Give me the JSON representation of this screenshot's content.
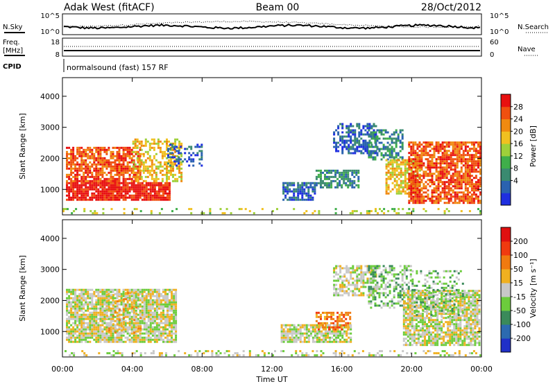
{
  "header": {
    "station": "Adak West (fitACF)",
    "beam": "Beam 00",
    "date": "28/Oct/2012"
  },
  "summary": {
    "nsky_label": "N.Sky",
    "nsearch_label": "N.Search",
    "top_ticks": [
      "10^5",
      "10^0"
    ],
    "freq_label_1": "Freq.",
    "freq_label_2": "[MHz]",
    "freq_ticks": [
      "18",
      "8"
    ],
    "nave_label": "Nave",
    "nave_ticks": [
      "60",
      "0"
    ],
    "cpid_label": "CPID",
    "cpid_text": "normalsound (fast) 157 RF"
  },
  "x_axis": {
    "label": "Time UT",
    "ticks": [
      "00:00",
      "04:00",
      "08:00",
      "12:00",
      "16:00",
      "20:00",
      "00:00"
    ],
    "range_hours": [
      0,
      24
    ]
  },
  "y_axis": {
    "label": "Slant Range [km]",
    "ticks": [
      "1000",
      "2000",
      "3000",
      "4000"
    ],
    "range_km": [
      180,
      4600
    ]
  },
  "colors": {
    "power": [
      "#1f2fe0",
      "#2a62b0",
      "#3a8a70",
      "#3fae4a",
      "#9ed03a",
      "#f0c020",
      "#f08a10",
      "#f05010",
      "#e81010"
    ],
    "velocity": [
      "#2030c8",
      "#2c6ab0",
      "#3a8a5a",
      "#6ccc3c",
      "#c8c8c8",
      "#f0b020",
      "#f07a10",
      "#f03a10",
      "#e01010"
    ]
  },
  "power_colorbar": {
    "label": "Power [dB]",
    "ticks": [
      "28",
      "24",
      "20",
      "16",
      "12",
      "8",
      "4"
    ]
  },
  "velocity_colorbar": {
    "label": "Velocity [m s⁻¹]",
    "ticks": [
      "200",
      "100",
      "50",
      "15",
      "-15",
      "-50",
      "-100",
      "-200"
    ]
  },
  "chart_data": [
    {
      "type": "heatmap",
      "panel": "power",
      "x_unit": "hours UT",
      "y_unit": "km",
      "clusters": [
        {
          "t": [
            0.2,
            6.2
          ],
          "r": [
            700,
            1300
          ],
          "level": 8,
          "density": 0.9
        },
        {
          "t": [
            0.2,
            4.5
          ],
          "r": [
            1300,
            2400
          ],
          "level": 7,
          "density": 0.75
        },
        {
          "t": [
            4.0,
            6.8
          ],
          "r": [
            1300,
            2700
          ],
          "level": 5,
          "density": 0.55
        },
        {
          "t": [
            6.0,
            8.0
          ],
          "r": [
            1800,
            2500
          ],
          "level": 1,
          "density": 0.35
        },
        {
          "t": [
            12.6,
            14.5
          ],
          "r": [
            700,
            1300
          ],
          "level": 1,
          "density": 0.75
        },
        {
          "t": [
            14.5,
            17.0
          ],
          "r": [
            1100,
            1700
          ],
          "level": 2,
          "density": 0.65
        },
        {
          "t": [
            15.5,
            18.0
          ],
          "r": [
            2200,
            3200
          ],
          "level": 1,
          "density": 0.6
        },
        {
          "t": [
            17.5,
            19.5
          ],
          "r": [
            2000,
            3000
          ],
          "level": 2,
          "density": 0.55
        },
        {
          "t": [
            18.5,
            20.5
          ],
          "r": [
            900,
            2000
          ],
          "level": 5,
          "density": 0.7
        },
        {
          "t": [
            19.8,
            23.9
          ],
          "r": [
            600,
            2600
          ],
          "level": 7,
          "density": 0.75
        },
        {
          "t": [
            0.0,
            24.0
          ],
          "r": [
            200,
            450
          ],
          "level": 4,
          "density": 0.2
        }
      ]
    },
    {
      "type": "heatmap",
      "panel": "velocity",
      "x_unit": "hours UT",
      "y_unit": "km",
      "clusters": [
        {
          "t": [
            0.2,
            6.5
          ],
          "r": [
            700,
            2400
          ],
          "level": 4,
          "density": 0.85
        },
        {
          "t": [
            2.5,
            4.5
          ],
          "r": [
            1000,
            2300
          ],
          "level": 5,
          "density": 0.2
        },
        {
          "t": [
            12.5,
            16.5
          ],
          "r": [
            700,
            1300
          ],
          "level": 4,
          "density": 0.8
        },
        {
          "t": [
            14.5,
            16.5
          ],
          "r": [
            1100,
            1700
          ],
          "level": 6,
          "density": 0.55
        },
        {
          "t": [
            15.5,
            18.0
          ],
          "r": [
            2200,
            3200
          ],
          "level": 4,
          "density": 0.55
        },
        {
          "t": [
            17.5,
            20.0
          ],
          "r": [
            1800,
            3200
          ],
          "level": 3,
          "density": 0.5
        },
        {
          "t": [
            19.5,
            23.9
          ],
          "r": [
            600,
            2400
          ],
          "level": 4,
          "density": 0.8
        },
        {
          "t": [
            20.0,
            23.0
          ],
          "r": [
            1500,
            3000
          ],
          "level": 3,
          "density": 0.3
        },
        {
          "t": [
            0.0,
            24.0
          ],
          "r": [
            200,
            450
          ],
          "level": 4,
          "density": 0.2
        }
      ]
    }
  ]
}
